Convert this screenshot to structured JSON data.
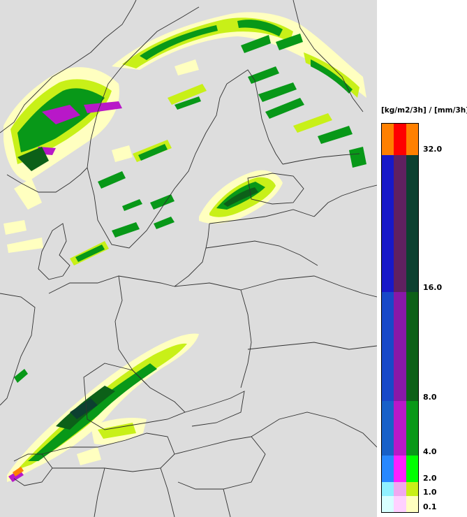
{
  "legend": {
    "unit_label": "[kg/m2/3h] / [mm/3h]",
    "ticks": [
      "32.0",
      "16.0",
      "8.0",
      "4.0",
      "2.0",
      "1.0",
      "0.1"
    ],
    "bands": [
      {
        "range": "32+",
        "colors": [
          "#ff8000",
          "#ff0000",
          "#ff8000"
        ]
      },
      {
        "range": "16-32",
        "colors": [
          "#1818c8",
          "#602060",
          "#0c4030"
        ]
      },
      {
        "range": "8-16",
        "colors": [
          "#1848c8",
          "#8818a8",
          "#0c6018"
        ]
      },
      {
        "range": "4-8",
        "colors": [
          "#1860c8",
          "#b818c8",
          "#089818"
        ]
      },
      {
        "range": "2-4",
        "colors": [
          "#2888ff",
          "#ff20ff",
          "#00ff00"
        ]
      },
      {
        "range": "1-2",
        "colors": [
          "#90f0ff",
          "#f0a8f0",
          "#c8f018"
        ]
      },
      {
        "range": "0.1-1",
        "colors": [
          "#d8ffff",
          "#ffd0ff",
          "#ffffc0"
        ]
      }
    ]
  },
  "colors": {
    "map_background": "#dddddd",
    "border_lines": "#303030"
  }
}
